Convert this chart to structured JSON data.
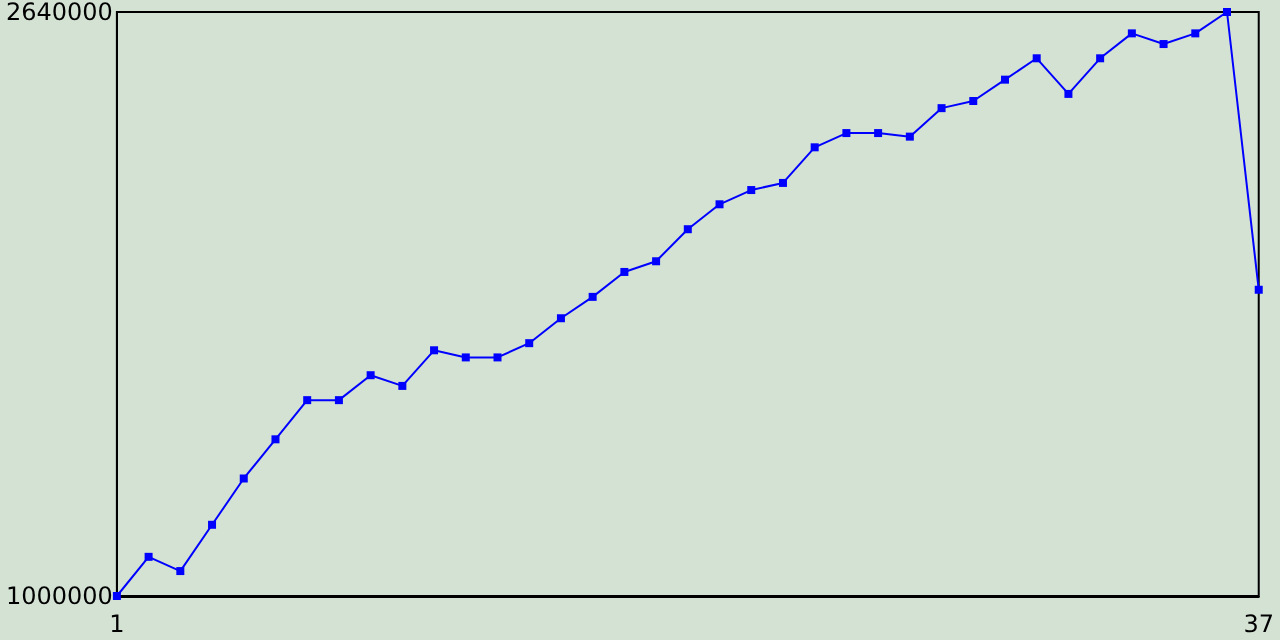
{
  "chart_data": {
    "type": "line",
    "x": [
      1,
      2,
      3,
      4,
      5,
      6,
      7,
      8,
      9,
      10,
      11,
      12,
      13,
      14,
      15,
      16,
      17,
      18,
      19,
      20,
      21,
      22,
      23,
      24,
      25,
      26,
      27,
      28,
      29,
      30,
      31,
      32,
      33,
      34,
      35,
      36,
      37
    ],
    "series": [
      {
        "color": "#0000ff",
        "values": [
          1000000,
          1110000,
          1070000,
          1200000,
          1330000,
          1440000,
          1550000,
          1550000,
          1620000,
          1590000,
          1690000,
          1670000,
          1670000,
          1710000,
          1780000,
          1840000,
          1910000,
          1940000,
          2030000,
          2100000,
          2140000,
          2160000,
          2260000,
          2300000,
          2300000,
          2290000,
          2370000,
          2390000,
          2450000,
          2510000,
          2410000,
          2510000,
          2580000,
          2550000,
          2580000,
          2640000,
          1860000
        ]
      }
    ],
    "xlim": [
      1,
      37
    ],
    "xticks": [
      1,
      37
    ],
    "ylim": [
      1000000,
      2640000
    ],
    "yticks": [
      1000000,
      2640000
    ],
    "grid": false,
    "marker": "square",
    "line_style": "solid"
  }
}
